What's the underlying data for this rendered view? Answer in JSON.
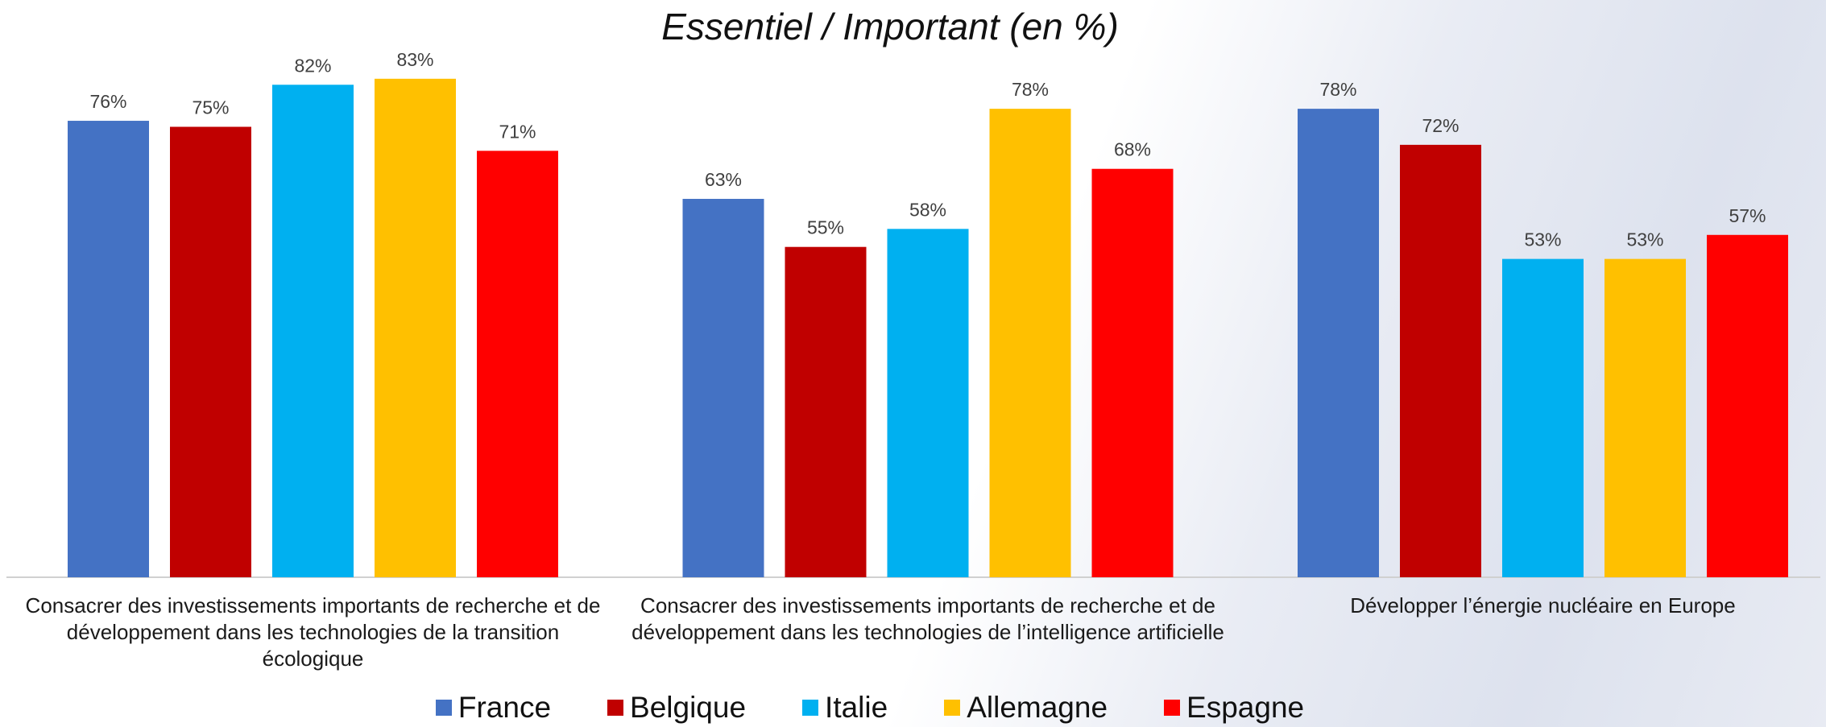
{
  "chart_data": {
    "type": "bar",
    "title": "Essentiel / Important (en %)",
    "categories": [
      "Consacrer des investissements importants de recherche et de développement dans les technologies de la transition écologique",
      "Consacrer des investissements importants de recherche et de développement dans les technologies de l’intelligence artificielle",
      "Développer l’énergie nucléaire en Europe"
    ],
    "series": [
      {
        "name": "France",
        "color": "#4472c4",
        "values": [
          76,
          63,
          78
        ],
        "value_labels": [
          "76%",
          "63%",
          "78%"
        ]
      },
      {
        "name": "Belgique",
        "color": "#c00000",
        "values": [
          75,
          55,
          72
        ],
        "value_labels": [
          "75%",
          "55%",
          "72%"
        ]
      },
      {
        "name": "Italie",
        "color": "#00b0f0",
        "values": [
          82,
          58,
          53
        ],
        "value_labels": [
          "82%",
          "58%",
          "53%"
        ]
      },
      {
        "name": "Allemagne",
        "color": "#ffc000",
        "values": [
          83,
          78,
          53
        ],
        "value_labels": [
          "83%",
          "78%",
          "53%"
        ]
      },
      {
        "name": "Espagne",
        "color": "#ff0000",
        "values": [
          71,
          68,
          57
        ],
        "value_labels": [
          "71%",
          "68%",
          "57%"
        ]
      }
    ],
    "ylim": [
      0,
      100
    ],
    "legend": "bottom"
  }
}
